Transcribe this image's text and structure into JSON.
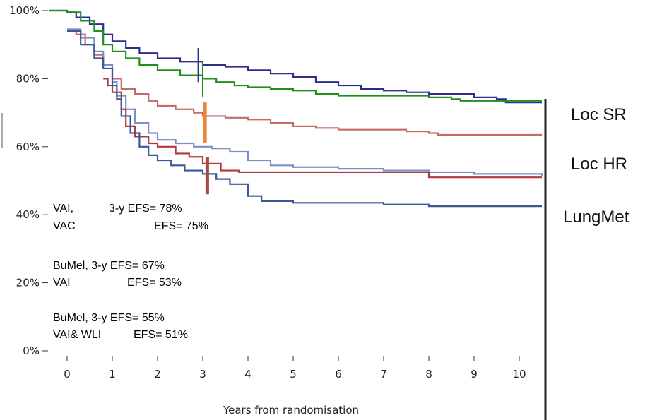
{
  "chart_data": {
    "type": "line",
    "title": "",
    "xlabel": "Years from randomisation",
    "ylabel": "",
    "xlim": [
      -0.4,
      10.5
    ],
    "ylim": [
      0,
      100
    ],
    "x_ticks": [
      "0",
      "1",
      "2",
      "3",
      "4",
      "5",
      "6",
      "7",
      "8",
      "9",
      "10"
    ],
    "y_ticks": [
      "0%",
      "20%",
      "40%",
      "60%",
      "80%",
      "100%"
    ],
    "series": [
      {
        "color": "#2e2e8f",
        "points": [
          [
            -0.4,
            100
          ],
          [
            0,
            99.5
          ],
          [
            0.2,
            98
          ],
          [
            0.5,
            96
          ],
          [
            0.8,
            93
          ],
          [
            1,
            91
          ],
          [
            1.3,
            89
          ],
          [
            1.6,
            87.5
          ],
          [
            2,
            86
          ],
          [
            2.5,
            85
          ],
          [
            3,
            84
          ],
          [
            3.5,
            83.5
          ],
          [
            4,
            82.5
          ],
          [
            4.5,
            81.5
          ],
          [
            5,
            80.5
          ],
          [
            5.5,
            79
          ],
          [
            6,
            78
          ],
          [
            6.5,
            77
          ],
          [
            7,
            76.5
          ],
          [
            7.5,
            76
          ],
          [
            8,
            75.5
          ],
          [
            9,
            74.5
          ],
          [
            9.5,
            74
          ],
          [
            9.7,
            73
          ],
          [
            10.5,
            73
          ]
        ]
      },
      {
        "color": "#1f8f1f",
        "points": [
          [
            -0.4,
            100
          ],
          [
            0,
            99.5
          ],
          [
            0.3,
            97
          ],
          [
            0.6,
            94
          ],
          [
            0.8,
            90
          ],
          [
            1,
            88
          ],
          [
            1.3,
            86
          ],
          [
            1.6,
            84
          ],
          [
            2,
            82.5
          ],
          [
            2.5,
            81
          ],
          [
            3,
            80
          ],
          [
            3.3,
            79
          ],
          [
            3.7,
            78
          ],
          [
            4,
            77.5
          ],
          [
            4.5,
            77
          ],
          [
            5,
            76.5
          ],
          [
            5.5,
            75.5
          ],
          [
            6,
            75
          ],
          [
            7,
            75
          ],
          [
            8,
            74.5
          ],
          [
            8.5,
            74
          ],
          [
            8.7,
            73.5
          ],
          [
            10.5,
            73.5
          ]
        ]
      },
      {
        "color": "#c56a6a",
        "points": [
          [
            0,
            94.5
          ],
          [
            0.2,
            93
          ],
          [
            0.4,
            90
          ],
          [
            0.6,
            87
          ],
          [
            0.8,
            84
          ],
          [
            1,
            80
          ],
          [
            1.2,
            77
          ],
          [
            1.5,
            75.5
          ],
          [
            1.8,
            73.5
          ],
          [
            2,
            72
          ],
          [
            2.4,
            71
          ],
          [
            2.8,
            70
          ],
          [
            3,
            69
          ],
          [
            3.5,
            68.5
          ],
          [
            4,
            68
          ],
          [
            4.5,
            67
          ],
          [
            5,
            66
          ],
          [
            5.5,
            65.5
          ],
          [
            6,
            65
          ],
          [
            7,
            65
          ],
          [
            7.5,
            64.5
          ],
          [
            8,
            64
          ],
          [
            8.2,
            63.5
          ],
          [
            10.5,
            63.5
          ]
        ]
      },
      {
        "color": "#7d8fc9",
        "points": [
          [
            0,
            94.5
          ],
          [
            0.3,
            92
          ],
          [
            0.6,
            88
          ],
          [
            0.8,
            84
          ],
          [
            1,
            79
          ],
          [
            1.1,
            75
          ],
          [
            1.3,
            71
          ],
          [
            1.5,
            67
          ],
          [
            1.8,
            64
          ],
          [
            2,
            62
          ],
          [
            2.4,
            61
          ],
          [
            2.8,
            60
          ],
          [
            3.2,
            59.5
          ],
          [
            3.6,
            58.5
          ],
          [
            4,
            56
          ],
          [
            4.5,
            54.5
          ],
          [
            5,
            54
          ],
          [
            6,
            53.5
          ],
          [
            7,
            53
          ],
          [
            7.5,
            53
          ],
          [
            8,
            52.5
          ],
          [
            9,
            52
          ],
          [
            10.5,
            51.5
          ]
        ]
      },
      {
        "color": "#b03a3a",
        "points": [
          [
            0.8,
            80
          ],
          [
            0.9,
            78
          ],
          [
            1,
            76
          ],
          [
            1.2,
            71
          ],
          [
            1.3,
            66
          ],
          [
            1.5,
            63
          ],
          [
            1.8,
            61
          ],
          [
            2,
            60
          ],
          [
            2.4,
            58
          ],
          [
            2.7,
            57
          ],
          [
            3,
            55
          ],
          [
            3.4,
            53
          ],
          [
            3.8,
            52.5
          ],
          [
            4.5,
            52.5
          ],
          [
            5.5,
            52.5
          ],
          [
            6.5,
            52.5
          ],
          [
            7,
            52.5
          ],
          [
            7.5,
            52.5
          ],
          [
            8,
            51
          ],
          [
            10.5,
            51
          ]
        ]
      },
      {
        "color": "#3b5796",
        "points": [
          [
            0,
            94
          ],
          [
            0.3,
            90
          ],
          [
            0.6,
            86
          ],
          [
            0.8,
            83
          ],
          [
            1,
            78
          ],
          [
            1.1,
            74
          ],
          [
            1.2,
            69
          ],
          [
            1.4,
            64
          ],
          [
            1.6,
            60
          ],
          [
            1.8,
            57.5
          ],
          [
            2,
            56
          ],
          [
            2.3,
            54.5
          ],
          [
            2.6,
            53
          ],
          [
            3,
            52
          ],
          [
            3.3,
            50.5
          ],
          [
            3.6,
            49
          ],
          [
            4,
            45.5
          ],
          [
            4.3,
            44
          ],
          [
            5,
            43.5
          ],
          [
            6,
            43.5
          ],
          [
            7,
            43
          ],
          [
            8,
            42.5
          ],
          [
            10.5,
            42.5
          ]
        ]
      }
    ],
    "markers": [
      {
        "x": 2.9,
        "y1": 79,
        "y2": 89,
        "color": "#2e2e8f"
      },
      {
        "x": 3.0,
        "y1": 74.5,
        "y2": 85,
        "color": "#1f8f1f"
      },
      {
        "x": 3.05,
        "y1": 61,
        "y2": 73,
        "color": "#e8893a"
      },
      {
        "x": 3.1,
        "y1": 46,
        "y2": 57,
        "color": "#a84848"
      }
    ],
    "annotations": [
      {
        "text": "VAI,",
        "color": "#1a1adb"
      },
      {
        "text": "3-y EFS= 78%",
        "color": "#1a1adb"
      },
      {
        "text": "VAC",
        "color": "#6e9a3a"
      },
      {
        "text": "EFS= 75%",
        "color": "#6e9a3a"
      },
      {
        "text": "BuMel, 3-y EFS= 67%",
        "color": "#e07b2e"
      },
      {
        "text": "VAI",
        "color": "#8a8a8a"
      },
      {
        "text": "EFS= 53%",
        "color": "#8a8a8a"
      },
      {
        "text": "BuMel, 3-y EFS= 55%",
        "color": "#c0141a"
      },
      {
        "text": "VAI& WLI",
        "color": "#3b5796"
      },
      {
        "text": "EFS= 51%",
        "color": "#3b5796"
      }
    ],
    "side_labels": [
      "Loc SR",
      "Loc HR",
      "LungMet"
    ]
  }
}
